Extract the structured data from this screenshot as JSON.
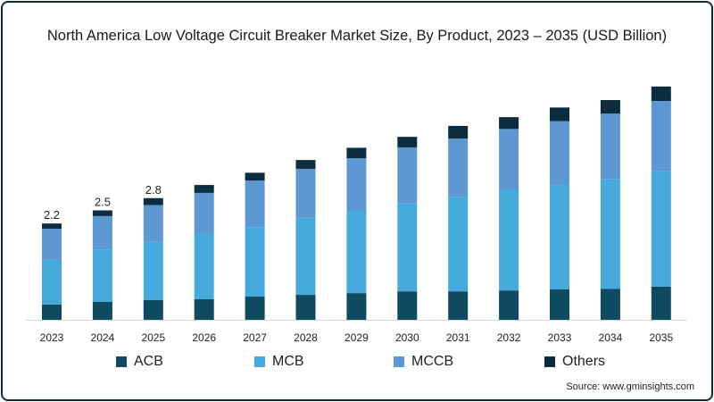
{
  "chart_data": {
    "type": "bar",
    "stacked": true,
    "title": "North America Low Voltage Circuit Breaker Market Size, By Product, 2023 – 2035 (USD Billion)",
    "xlabel": "",
    "ylabel": "USD Billion",
    "ylim": [
      0,
      5.5
    ],
    "grid": false,
    "legend_position": "bottom",
    "categories": [
      "2023",
      "2024",
      "2025",
      "2026",
      "2027",
      "2028",
      "2029",
      "2030",
      "2031",
      "2032",
      "2033",
      "2034",
      "2035"
    ],
    "series": [
      {
        "name": "ACB",
        "color": "#0e4a60",
        "values": [
          0.35,
          0.41,
          0.45,
          0.47,
          0.53,
          0.57,
          0.61,
          0.65,
          0.65,
          0.67,
          0.7,
          0.71,
          0.76
        ]
      },
      {
        "name": "MCB",
        "color": "#47aadf",
        "values": [
          1.02,
          1.2,
          1.33,
          1.49,
          1.59,
          1.76,
          1.88,
          2.02,
          2.16,
          2.31,
          2.37,
          2.51,
          2.64
        ]
      },
      {
        "name": "MCCB",
        "color": "#5d98d2",
        "values": [
          0.71,
          0.76,
          0.84,
          0.94,
          1.06,
          1.12,
          1.2,
          1.27,
          1.33,
          1.38,
          1.47,
          1.49,
          1.6
        ]
      },
      {
        "name": "Others",
        "color": "#0b2d3f",
        "values": [
          0.12,
          0.13,
          0.16,
          0.18,
          0.18,
          0.2,
          0.24,
          0.24,
          0.29,
          0.27,
          0.31,
          0.31,
          0.33
        ]
      }
    ],
    "data_labels": {
      "2023": "2.2",
      "2024": "2.5",
      "2025": "2.8"
    }
  },
  "source": "Source: www.gminsights.com"
}
